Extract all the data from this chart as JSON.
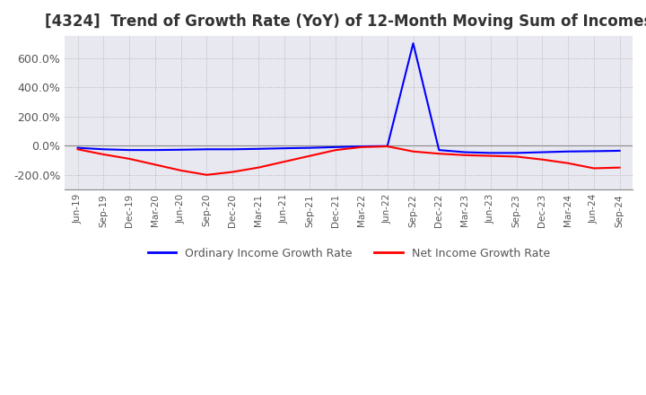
{
  "title": "[4324]  Trend of Growth Rate (YoY) of 12-Month Moving Sum of Incomes",
  "title_fontsize": 12,
  "background_color": "#ffffff",
  "plot_bg_color": "#e8e8f0",
  "grid_color": "#aaaaaa",
  "legend_labels": [
    "Ordinary Income Growth Rate",
    "Net Income Growth Rate"
  ],
  "legend_colors": [
    "#0000ff",
    "#ff0000"
  ],
  "x_labels": [
    "Jun-19",
    "Sep-19",
    "Dec-19",
    "Mar-20",
    "Jun-20",
    "Sep-20",
    "Dec-20",
    "Mar-21",
    "Jun-21",
    "Sep-21",
    "Dec-21",
    "Mar-22",
    "Jun-22",
    "Sep-22",
    "Dec-22",
    "Mar-23",
    "Jun-23",
    "Sep-23",
    "Dec-23",
    "Mar-24",
    "Jun-24",
    "Sep-24"
  ],
  "ordinary_income_gr": [
    -15,
    -25,
    -30,
    -30,
    -28,
    -25,
    -25,
    -22,
    -18,
    -15,
    -10,
    -5,
    -3,
    700,
    -30,
    -45,
    -50,
    -50,
    -45,
    -40,
    -38,
    -35
  ],
  "net_income_gr": [
    -25,
    -60,
    -90,
    -130,
    -170,
    -200,
    -180,
    -150,
    -110,
    -70,
    -30,
    -10,
    -5,
    -40,
    -55,
    -65,
    -70,
    -75,
    -95,
    -120,
    -155,
    -150
  ],
  "ylim": [
    -300,
    750
  ],
  "yticks": [
    -200,
    0,
    200,
    400,
    600
  ],
  "ytick_labels": [
    "-200.0%",
    "0.0%",
    "200.0%",
    "400.0%",
    "600.0%"
  ]
}
